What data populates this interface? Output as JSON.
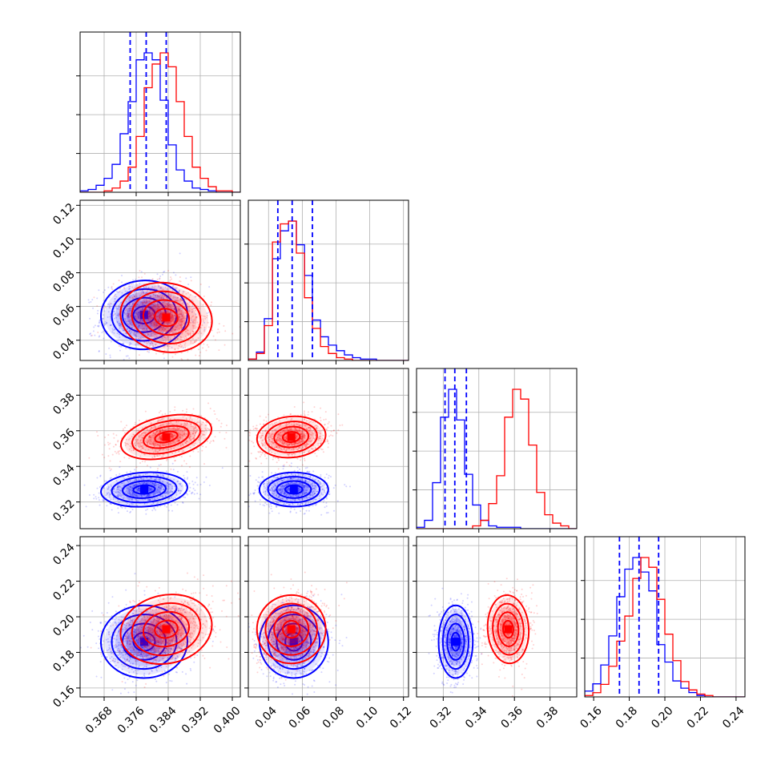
{
  "chart_data": {
    "type": "corner",
    "title": "",
    "parameters": [
      {
        "range": [
          0.362,
          0.402
        ],
        "ticks": [
          0.368,
          0.376,
          0.384,
          0.392,
          0.4
        ],
        "tick_labels": [
          "0.368",
          "0.376",
          "0.384",
          "0.392",
          "0.400"
        ]
      },
      {
        "range": [
          0.028,
          0.123
        ],
        "ticks": [
          0.04,
          0.06,
          0.08,
          0.1,
          0.12
        ],
        "tick_labels": [
          "0.04",
          "0.06",
          "0.08",
          "0.10",
          "0.12"
        ]
      },
      {
        "range": [
          0.305,
          0.395
        ],
        "ticks": [
          0.32,
          0.34,
          0.36,
          0.38
        ],
        "tick_labels": [
          "0.32",
          "0.34",
          "0.36",
          "0.38"
        ]
      },
      {
        "range": [
          0.155,
          0.245
        ],
        "ticks": [
          0.16,
          0.18,
          0.2,
          0.22,
          0.24
        ],
        "tick_labels": [
          "0.16",
          "0.18",
          "0.20",
          "0.22",
          "0.24"
        ]
      }
    ],
    "series": [
      {
        "color": "#0000ff",
        "histograms": [
          {
            "edges": [
              0.362,
              0.364,
              0.366,
              0.368,
              0.37,
              0.372,
              0.374,
              0.376,
              0.378,
              0.38,
              0.382,
              0.384,
              0.386,
              0.388,
              0.39,
              0.392,
              0.394,
              0.396,
              0.398,
              0.4,
              0.402
            ],
            "counts": [
              1,
              2,
              5,
              10,
              20,
              42,
              65,
              95,
              100,
              95,
              66,
              34,
              16,
              8,
              3,
              2,
              1,
              0,
              0,
              0
            ]
          },
          {
            "edges": [
              0.028,
              0.0328,
              0.0375,
              0.0423,
              0.047,
              0.0518,
              0.0565,
              0.0613,
              0.066,
              0.0708,
              0.0755,
              0.0803,
              0.085,
              0.0898,
              0.0945,
              0.0993,
              0.104,
              0.1088,
              0.1135,
              0.1183,
              0.123
            ],
            "counts": [
              1,
              6,
              30,
              73,
              93,
              100,
              83,
              61,
              29,
              17,
              11,
              7,
              4,
              2,
              1,
              1,
              0,
              0,
              0,
              0
            ]
          },
          {
            "edges": [
              0.305,
              0.3095,
              0.314,
              0.3185,
              0.323,
              0.3275,
              0.332,
              0.3365,
              0.341,
              0.3455,
              0.35,
              0.3545,
              0.359,
              0.3635,
              0.368,
              0.3725,
              0.377,
              0.3815,
              0.386,
              0.3905,
              0.395
            ],
            "counts": [
              1,
              6,
              33,
              80,
              100,
              78,
              39,
              17,
              6,
              2,
              1,
              1,
              1,
              0,
              0,
              0,
              0,
              0,
              0,
              0
            ]
          },
          {
            "edges": [
              0.155,
              0.1595,
              0.164,
              0.1685,
              0.173,
              0.1775,
              0.182,
              0.1865,
              0.191,
              0.1955,
              0.2,
              0.2045,
              0.209,
              0.2135,
              0.218,
              0.2225,
              0.227,
              0.2315,
              0.236,
              0.2405,
              0.245
            ],
            "counts": [
              4,
              9,
              22,
              42,
              69,
              88,
              96,
              86,
              73,
              36,
              24,
              11,
              6,
              3,
              1,
              0,
              0,
              0,
              0,
              0
            ]
          }
        ],
        "means": [
          0.378,
          0.055,
          0.327,
          0.186
        ],
        "quantiles": [
          [
            0.3745,
            0.3785,
            0.3835
          ],
          [
            0.0455,
            0.054,
            0.066
          ],
          [
            0.321,
            0.3265,
            0.333
          ],
          [
            0.1745,
            0.1855,
            0.1965
          ]
        ]
      },
      {
        "color": "#ff0000",
        "histograms": [
          {
            "edges": [
              0.362,
              0.364,
              0.366,
              0.368,
              0.37,
              0.372,
              0.374,
              0.376,
              0.378,
              0.38,
              0.382,
              0.384,
              0.386,
              0.388,
              0.39,
              0.392,
              0.394,
              0.396,
              0.398,
              0.4,
              0.402
            ],
            "counts": [
              0,
              0,
              0,
              1,
              3,
              8,
              18,
              40,
              75,
              92,
              100,
              90,
              65,
              40,
              18,
              10,
              4,
              1,
              1,
              0
            ]
          },
          {
            "edges": [
              0.028,
              0.0328,
              0.0375,
              0.0423,
              0.047,
              0.0518,
              0.0565,
              0.0613,
              0.066,
              0.0708,
              0.0755,
              0.0803,
              0.085,
              0.0898,
              0.0945,
              0.0993,
              0.104,
              0.1088,
              0.1135,
              0.1183,
              0.123
            ],
            "counts": [
              1,
              5,
              25,
              85,
              98,
              100,
              77,
              45,
              23,
              10,
              5,
              2,
              1,
              0,
              0,
              0,
              0,
              0,
              0,
              0
            ]
          },
          {
            "edges": [
              0.305,
              0.3095,
              0.314,
              0.3185,
              0.323,
              0.3275,
              0.332,
              0.3365,
              0.341,
              0.3455,
              0.35,
              0.3545,
              0.359,
              0.3635,
              0.368,
              0.3725,
              0.377,
              0.3815,
              0.386,
              0.3905,
              0.395
            ],
            "counts": [
              0,
              0,
              0,
              0,
              0,
              0,
              0,
              2,
              6,
              18,
              38,
              80,
              100,
              93,
              60,
              26,
              10,
              4,
              2,
              0
            ]
          },
          {
            "edges": [
              0.155,
              0.1595,
              0.164,
              0.1685,
              0.173,
              0.1775,
              0.182,
              0.1865,
              0.191,
              0.1955,
              0.2,
              0.2045,
              0.209,
              0.2135,
              0.218,
              0.2225,
              0.227,
              0.2315,
              0.236,
              0.2405,
              0.245
            ],
            "counts": [
              1,
              3,
              9,
              22,
              40,
              58,
              85,
              100,
              93,
              70,
              45,
              26,
              11,
              5,
              2,
              1,
              0,
              0,
              0,
              0
            ]
          }
        ],
        "means": [
          0.3835,
          0.0535,
          0.3565,
          0.193
        ]
      }
    ]
  }
}
